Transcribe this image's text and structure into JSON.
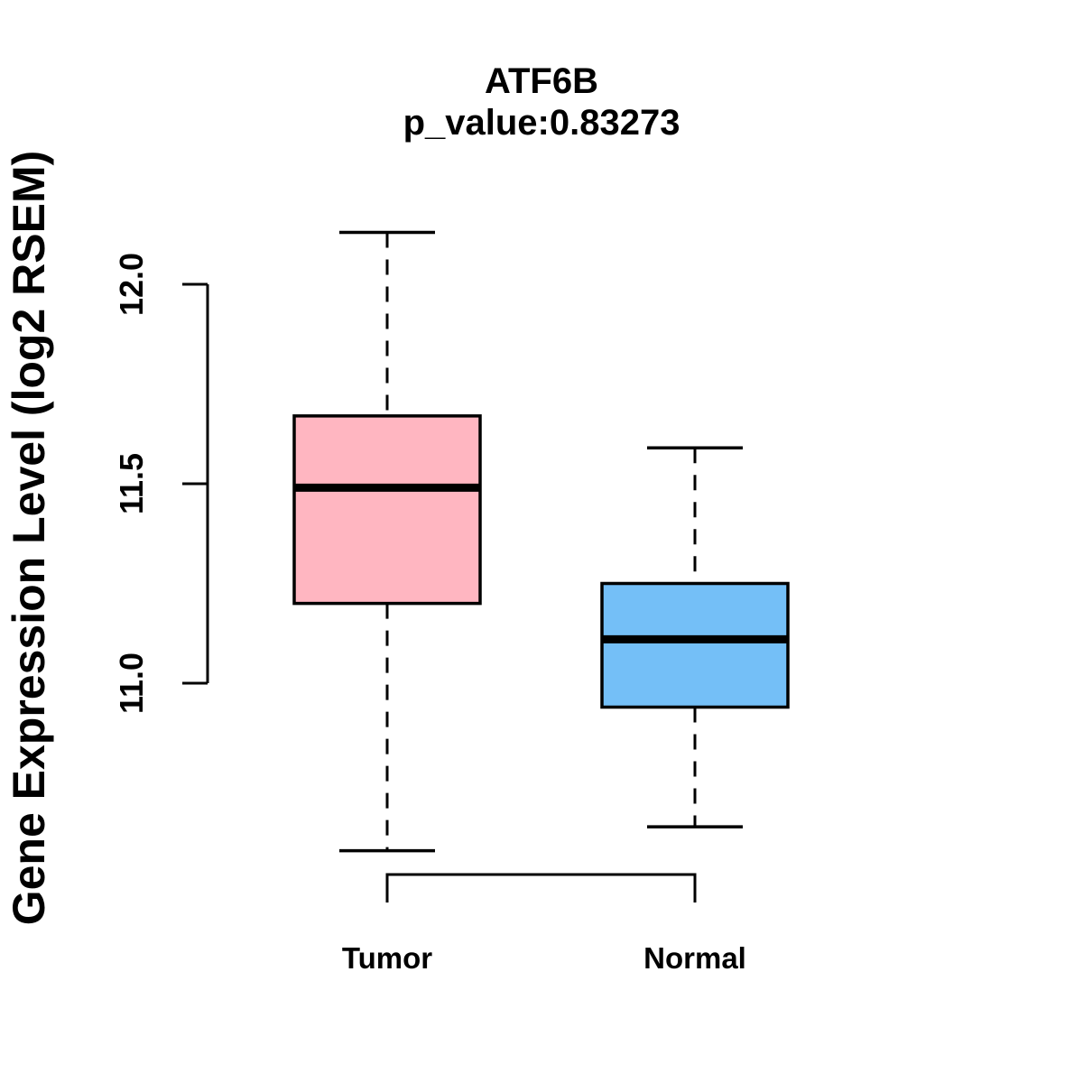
{
  "chart_data": {
    "type": "boxplot",
    "title": "ATF6B",
    "subtitle": "p_value:0.83273",
    "gene": "ATF6B",
    "p_value": 0.83273,
    "ylabel": "Gene Expression Level (log2 RSEM)",
    "xlabel": "",
    "y_ticks": [
      11.0,
      11.5,
      12.0
    ],
    "grid": false,
    "legend": null,
    "box_border_color": "#000000",
    "groups": [
      {
        "name": "Tumor",
        "color": "#FFB6C1",
        "stats": {
          "whisker_low": 10.58,
          "q1": 11.2,
          "median": 11.49,
          "q3": 11.67,
          "whisker_high": 12.13
        }
      },
      {
        "name": "Normal",
        "color": "#74BFF7",
        "stats": {
          "whisker_low": 10.64,
          "q1": 10.94,
          "median": 11.11,
          "q3": 11.25,
          "whisker_high": 11.59
        }
      }
    ]
  }
}
